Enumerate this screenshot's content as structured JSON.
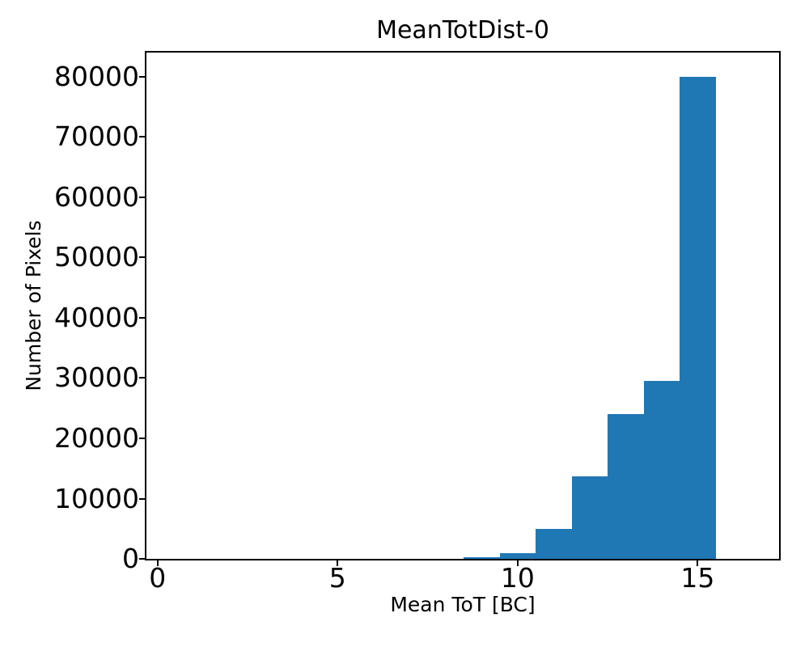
{
  "figure": {
    "background": "#ffffff",
    "text_color": "#000000"
  },
  "chart_data": {
    "type": "bar",
    "subtype": "histogram",
    "title": "MeanTotDist-0",
    "xlabel": "Mean ToT [BC]",
    "ylabel": "Number of Pixels",
    "bar_color": "#1f77b4",
    "axis_color": "#000000",
    "grid": false,
    "legend_position": "none",
    "bin_edges": [
      8.5,
      9.5,
      10.5,
      11.5,
      12.5,
      13.5,
      14.5,
      15.5
    ],
    "counts": [
      270,
      1000,
      5000,
      13700,
      24000,
      29500,
      80000
    ],
    "xlim": [
      -0.31,
      17.26
    ],
    "ylim": [
      0,
      84000
    ],
    "xticks": [
      {
        "value": 0,
        "label": "0"
      },
      {
        "value": 5,
        "label": "5"
      },
      {
        "value": 10,
        "label": "10"
      },
      {
        "value": 15,
        "label": "15"
      }
    ],
    "yticks": [
      {
        "value": 0,
        "label": "0"
      },
      {
        "value": 10000,
        "label": "10000"
      },
      {
        "value": 20000,
        "label": "20000"
      },
      {
        "value": 30000,
        "label": "30000"
      },
      {
        "value": 40000,
        "label": "40000"
      },
      {
        "value": 50000,
        "label": "50000"
      },
      {
        "value": 60000,
        "label": "60000"
      },
      {
        "value": 70000,
        "label": "70000"
      },
      {
        "value": 80000,
        "label": "80000"
      }
    ]
  }
}
